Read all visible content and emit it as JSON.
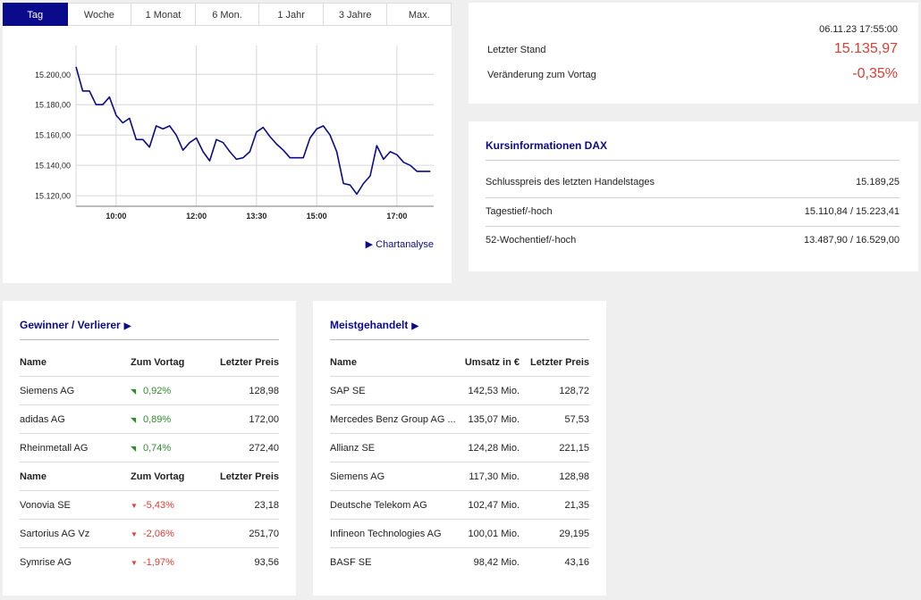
{
  "chart": {
    "tabs": [
      "Tag",
      "Woche",
      "1 Monat",
      "6 Mon.",
      "1 Jahr",
      "3 Jahre",
      "Max."
    ],
    "active_tab": 0,
    "chartanalyse_label": "Chartanalyse",
    "colors": {
      "line": "#0a0a8c",
      "active_tab": "#0a0a8c"
    }
  },
  "chart_data": {
    "type": "line",
    "title": "",
    "xlabel": "",
    "ylabel": "",
    "x_ticks": [
      "10:00",
      "12:00",
      "13:30",
      "15:00",
      "17:00"
    ],
    "x_tick_times": [
      "10:00",
      "12:00",
      "13:30",
      "15:00",
      "17:00"
    ],
    "y_ticks": [
      "15.200,00",
      "15.180,00",
      "15.160,00",
      "15.140,00",
      "15.120,00"
    ],
    "y_tick_values": [
      15200,
      15180,
      15160,
      15140,
      15120
    ],
    "ylim": [
      15113,
      15219
    ],
    "xlim": [
      "09:00",
      "17:55"
    ],
    "grid": true,
    "series": [
      {
        "x": [
          "09:00",
          "09:10",
          "09:20",
          "09:30",
          "09:40",
          "09:50",
          "10:00",
          "10:10",
          "10:20",
          "10:30",
          "10:40",
          "10:50",
          "11:00",
          "11:10",
          "11:20",
          "11:30",
          "11:40",
          "11:50",
          "12:00",
          "12:10",
          "12:20",
          "12:30",
          "12:40",
          "12:50",
          "13:00",
          "13:10",
          "13:20",
          "13:30",
          "13:40",
          "13:50",
          "14:00",
          "14:10",
          "14:20",
          "14:30",
          "14:40",
          "14:50",
          "15:00",
          "15:10",
          "15:20",
          "15:30",
          "15:40",
          "15:50",
          "16:00",
          "16:10",
          "16:20",
          "16:30",
          "16:40",
          "16:50",
          "17:00",
          "17:10",
          "17:20",
          "17:30",
          "17:40",
          "17:50"
        ],
        "y": [
          15205,
          15189,
          15189,
          15180,
          15180,
          15185,
          15173,
          15168,
          15171,
          15157,
          15157,
          15152,
          15166,
          15164,
          15166,
          15160,
          15150,
          15155,
          15158,
          15149,
          15143,
          15157,
          15155,
          15149,
          15144,
          15145,
          15149,
          15162,
          15165,
          15159,
          15154,
          15150,
          15145,
          15145,
          15145,
          15158,
          15164,
          15166,
          15160,
          15149,
          15128,
          15127,
          15121,
          15128,
          15133,
          15153,
          15144,
          15149,
          15147,
          15142,
          15140,
          15136,
          15136,
          15136
        ]
      }
    ]
  },
  "summary": {
    "timestamp": "06.11.23 17:55:00",
    "last_label": "Letzter Stand",
    "last_value": "15.135,97",
    "change_label": "Veränderung zum Vortag",
    "change_value": "-0,35%"
  },
  "kurs": {
    "title": "Kursinformationen DAX",
    "rows": [
      {
        "label": "Schlusspreis des letzten Handelstages",
        "value": "15.189,25"
      },
      {
        "label": "Tagestief/-hoch",
        "value": "15.110,84 / 15.223,41"
      },
      {
        "label": "52-Wochentief/-hoch",
        "value": "13.487,90 / 16.529,00"
      }
    ]
  },
  "gv": {
    "title": "Gewinner / Verlierer",
    "arrow": "▶",
    "head": {
      "name": "Name",
      "change": "Zum Vortag",
      "price": "Letzter Preis"
    },
    "winners": [
      {
        "name": "Siemens AG",
        "indicator": "◥",
        "change": "0,92%",
        "price": "128,98"
      },
      {
        "name": "adidas AG",
        "indicator": "◥",
        "change": "0,89%",
        "price": "172,00"
      },
      {
        "name": "Rheinmetall AG",
        "indicator": "◥",
        "change": "0,74%",
        "price": "272,40"
      }
    ],
    "losers": [
      {
        "name": "Vonovia SE",
        "indicator": "▼",
        "change": "-5,43%",
        "price": "23,18"
      },
      {
        "name": "Sartorius AG Vz",
        "indicator": "▼",
        "change": "-2,06%",
        "price": "251,70"
      },
      {
        "name": "Symrise AG",
        "indicator": "▼",
        "change": "-1,97%",
        "price": "93,56"
      }
    ]
  },
  "mg": {
    "title": "Meistgehandelt",
    "arrow": "▶",
    "head": {
      "name": "Name",
      "volume": "Umsatz in €",
      "price": "Letzter Preis"
    },
    "rows": [
      {
        "name": "SAP SE",
        "volume": "142,53 Mio.",
        "price": "128,72"
      },
      {
        "name": "Mercedes Benz Group AG ...",
        "volume": "135,07 Mio.",
        "price": "57,53"
      },
      {
        "name": "Allianz SE",
        "volume": "124,28 Mio.",
        "price": "221,15"
      },
      {
        "name": "Siemens AG",
        "volume": "117,30 Mio.",
        "price": "128,98"
      },
      {
        "name": "Deutsche Telekom AG",
        "volume": "102,47 Mio.",
        "price": "21,35"
      },
      {
        "name": "Infineon Technologies AG",
        "volume": "100,01 Mio.",
        "price": "29,195"
      },
      {
        "name": "BASF SE",
        "volume": "98,42 Mio.",
        "price": "43,16"
      }
    ]
  }
}
